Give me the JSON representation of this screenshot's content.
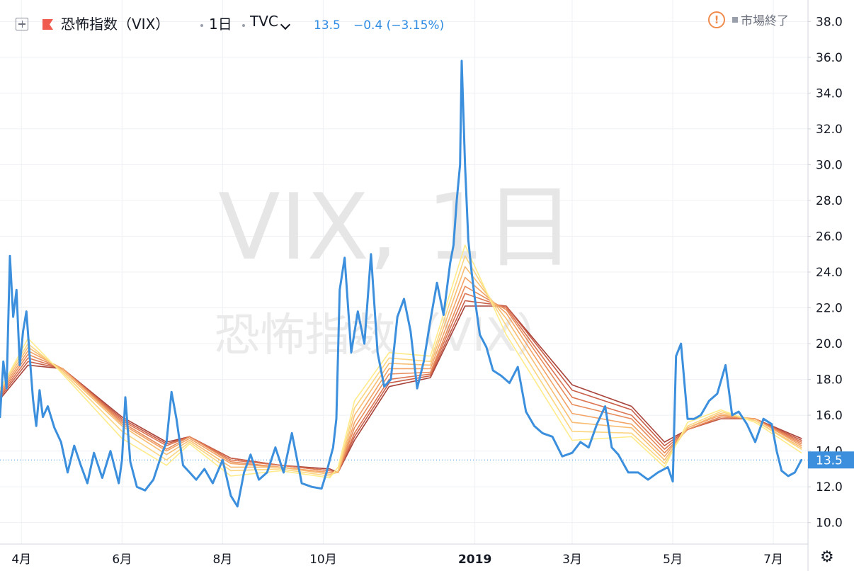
{
  "header": {
    "symbol_name": "恐怖指数（VIX）",
    "interval": "1日",
    "exchange": "TVC",
    "last": "13.5",
    "change": "−0.4 (−3.15%)",
    "market_status": "市場終了"
  },
  "watermark": {
    "line1": "VIX, 1日",
    "line2": "恐怖指数（VIX）"
  },
  "price_label": "13.5",
  "chart_data": {
    "type": "line",
    "title": "",
    "xlabel": "",
    "ylabel": "",
    "ylim": [
      8.8,
      39.2
    ],
    "xlim": [
      "2018-03-19",
      "2019-07-22"
    ],
    "y_ticks": [
      10.0,
      12.0,
      14.0,
      16.0,
      18.0,
      20.0,
      22.0,
      24.0,
      26.0,
      28.0,
      30.0,
      32.0,
      34.0,
      36.0,
      38.0
    ],
    "x_ticks": [
      {
        "label": "4月",
        "date": "2018-04-01"
      },
      {
        "label": "6月",
        "date": "2018-06-01"
      },
      {
        "label": "8月",
        "date": "2018-08-01"
      },
      {
        "label": "10月",
        "date": "2018-10-01"
      },
      {
        "label": "2019",
        "date": "2019-01-01"
      },
      {
        "label": "3月",
        "date": "2019-03-01"
      },
      {
        "label": "5月",
        "date": "2019-05-01"
      },
      {
        "label": "7月",
        "date": "2019-07-01"
      }
    ],
    "last_value": 13.5,
    "series": [
      {
        "name": "VIX",
        "color": "#3b8fdd",
        "dates": [
          "2018-03-19",
          "2018-03-21",
          "2018-03-23",
          "2018-03-25",
          "2018-03-27",
          "2018-03-29",
          "2018-03-31",
          "2018-04-02",
          "2018-04-04",
          "2018-04-06",
          "2018-04-08",
          "2018-04-10",
          "2018-04-12",
          "2018-04-14",
          "2018-04-17",
          "2018-04-21",
          "2018-04-25",
          "2018-04-29",
          "2018-05-03",
          "2018-05-07",
          "2018-05-11",
          "2018-05-15",
          "2018-05-20",
          "2018-05-25",
          "2018-05-30",
          "2018-06-01",
          "2018-06-03",
          "2018-06-06",
          "2018-06-10",
          "2018-06-15",
          "2018-06-20",
          "2018-06-25",
          "2018-06-28",
          "2018-07-01",
          "2018-07-04",
          "2018-07-08",
          "2018-07-12",
          "2018-07-16",
          "2018-07-21",
          "2018-07-26",
          "2018-08-01",
          "2018-08-06",
          "2018-08-10",
          "2018-08-14",
          "2018-08-18",
          "2018-08-23",
          "2018-08-28",
          "2018-09-02",
          "2018-09-07",
          "2018-09-12",
          "2018-09-18",
          "2018-09-24",
          "2018-09-30",
          "2018-10-03",
          "2018-10-05",
          "2018-10-07",
          "2018-10-09",
          "2018-10-11",
          "2018-10-14",
          "2018-10-18",
          "2018-10-22",
          "2018-10-26",
          "2018-10-30",
          "2018-11-03",
          "2018-11-07",
          "2018-11-11",
          "2018-11-15",
          "2018-11-19",
          "2018-11-23",
          "2018-11-27",
          "2018-12-01",
          "2018-12-05",
          "2018-12-09",
          "2018-12-13",
          "2018-12-17",
          "2018-12-19",
          "2018-12-21",
          "2018-12-23",
          "2018-12-24",
          "2018-12-26",
          "2018-12-28",
          "2018-12-30",
          "2019-01-01",
          "2019-01-04",
          "2019-01-08",
          "2019-01-12",
          "2019-01-17",
          "2019-01-22",
          "2019-01-27",
          "2019-02-01",
          "2019-02-06",
          "2019-02-11",
          "2019-02-17",
          "2019-02-23",
          "2019-03-01",
          "2019-03-06",
          "2019-03-11",
          "2019-03-16",
          "2019-03-21",
          "2019-03-25",
          "2019-03-29",
          "2019-04-04",
          "2019-04-10",
          "2019-04-16",
          "2019-04-22",
          "2019-04-28",
          "2019-05-01",
          "2019-05-03",
          "2019-05-06",
          "2019-05-10",
          "2019-05-14",
          "2019-05-18",
          "2019-05-23",
          "2019-05-28",
          "2019-06-02",
          "2019-06-06",
          "2019-06-10",
          "2019-06-15",
          "2019-06-20",
          "2019-06-25",
          "2019-06-30",
          "2019-07-03",
          "2019-07-06",
          "2019-07-10",
          "2019-07-14",
          "2019-07-18"
        ],
        "values": [
          15.9,
          19.0,
          17.5,
          24.9,
          21.5,
          23.0,
          18.8,
          20.7,
          21.8,
          19.3,
          16.9,
          15.4,
          17.4,
          15.9,
          16.5,
          15.3,
          14.5,
          12.8,
          14.3,
          13.2,
          12.2,
          13.9,
          12.5,
          14.0,
          12.2,
          13.5,
          17.0,
          13.4,
          12.0,
          11.8,
          12.4,
          13.8,
          14.5,
          17.3,
          15.8,
          13.2,
          12.8,
          12.4,
          13.0,
          12.2,
          13.5,
          11.5,
          10.9,
          12.8,
          13.8,
          12.4,
          12.8,
          14.2,
          12.8,
          15.0,
          12.2,
          12.0,
          11.9,
          12.8,
          13.5,
          14.2,
          15.8,
          23.0,
          24.8,
          19.5,
          21.8,
          20.0,
          25.0,
          19.5,
          17.6,
          18.0,
          21.5,
          22.5,
          20.7,
          17.5,
          19.0,
          21.3,
          23.4,
          21.6,
          24.5,
          25.5,
          28.0,
          30.0,
          35.8,
          30.0,
          25.8,
          24.0,
          22.5,
          20.5,
          19.8,
          18.5,
          18.2,
          17.8,
          18.7,
          16.2,
          15.4,
          15.0,
          14.8,
          13.7,
          13.9,
          14.5,
          14.2,
          15.5,
          16.5,
          14.2,
          13.8,
          12.8,
          12.8,
          12.4,
          12.8,
          13.1,
          12.3,
          19.3,
          20.0,
          15.8,
          15.8,
          16.0,
          16.8,
          17.2,
          18.8,
          16.0,
          16.2,
          15.5,
          14.5,
          15.8,
          15.5,
          14.0,
          12.9,
          12.6,
          12.8,
          13.5
        ]
      },
      {
        "name": "EMA 1",
        "color": "#ffeb8a",
        "dates": [
          "2018-03-19",
          "2018-04-05",
          "2018-04-26",
          "2018-06-01",
          "2018-06-28",
          "2018-07-12",
          "2018-08-06",
          "2018-09-05",
          "2018-10-05",
          "2018-10-10",
          "2018-10-20",
          "2018-11-10",
          "2018-12-05",
          "2018-12-26",
          "2019-01-20",
          "2019-03-01",
          "2019-04-06",
          "2019-04-26",
          "2019-05-10",
          "2019-05-30",
          "2019-06-20",
          "2019-07-18"
        ],
        "values": [
          17.4,
          20.3,
          18.3,
          14.7,
          13.2,
          14.4,
          12.6,
          12.9,
          12.5,
          13.1,
          16.8,
          19.5,
          19.3,
          25.5,
          20.5,
          14.6,
          14.8,
          13.1,
          15.6,
          16.3,
          15.6,
          13.9
        ]
      },
      {
        "name": "EMA 2",
        "color": "#fcd580",
        "dates": [
          "2018-03-19",
          "2018-04-05",
          "2018-04-26",
          "2018-06-01",
          "2018-06-28",
          "2018-07-12",
          "2018-08-06",
          "2018-09-05",
          "2018-10-05",
          "2018-10-10",
          "2018-10-20",
          "2018-11-10",
          "2018-12-05",
          "2018-12-26",
          "2019-01-20",
          "2019-03-01",
          "2019-04-06",
          "2019-04-26",
          "2019-05-10",
          "2019-05-30",
          "2019-06-20",
          "2019-07-18"
        ],
        "values": [
          17.5,
          20.0,
          18.4,
          15.1,
          13.5,
          14.5,
          12.9,
          13.0,
          12.6,
          12.9,
          16.4,
          19.2,
          19.0,
          24.9,
          21.0,
          15.1,
          15.0,
          13.3,
          15.4,
          16.2,
          15.7,
          14.1
        ]
      },
      {
        "name": "EMA 3",
        "color": "#f8bd72",
        "dates": [
          "2018-03-19",
          "2018-04-05",
          "2018-04-26",
          "2018-06-01",
          "2018-06-28",
          "2018-07-12",
          "2018-08-06",
          "2018-09-05",
          "2018-10-05",
          "2018-10-10",
          "2018-10-20",
          "2018-11-10",
          "2018-12-05",
          "2018-12-26",
          "2019-01-20",
          "2019-03-01",
          "2019-04-06",
          "2019-04-26",
          "2019-05-10",
          "2019-05-30",
          "2019-06-20",
          "2019-07-18"
        ],
        "values": [
          17.4,
          19.8,
          18.5,
          15.4,
          13.8,
          14.6,
          13.1,
          13.1,
          12.7,
          12.8,
          16.0,
          18.9,
          18.8,
          24.3,
          21.4,
          15.6,
          15.3,
          13.5,
          15.3,
          16.1,
          15.7,
          14.2
        ]
      },
      {
        "name": "EMA 4",
        "color": "#f2a365",
        "dates": [
          "2018-03-19",
          "2018-04-05",
          "2018-04-26",
          "2018-06-01",
          "2018-06-28",
          "2018-07-12",
          "2018-08-06",
          "2018-09-05",
          "2018-10-05",
          "2018-10-10",
          "2018-10-20",
          "2018-11-10",
          "2018-12-05",
          "2018-12-26",
          "2019-01-20",
          "2019-03-01",
          "2019-04-06",
          "2019-04-26",
          "2019-05-10",
          "2019-05-30",
          "2019-06-20",
          "2019-07-18"
        ],
        "values": [
          17.3,
          19.6,
          18.6,
          15.5,
          14.0,
          14.7,
          13.3,
          13.1,
          12.8,
          12.8,
          15.6,
          18.6,
          18.6,
          23.7,
          21.7,
          16.1,
          15.5,
          13.7,
          15.3,
          16.0,
          15.8,
          14.3
        ]
      },
      {
        "name": "EMA 5",
        "color": "#e88c5a",
        "dates": [
          "2018-03-19",
          "2018-04-05",
          "2018-04-26",
          "2018-06-01",
          "2018-06-28",
          "2018-07-12",
          "2018-08-06",
          "2018-09-05",
          "2018-10-05",
          "2018-10-10",
          "2018-10-20",
          "2018-11-10",
          "2018-12-05",
          "2018-12-26",
          "2019-01-20",
          "2019-03-01",
          "2019-04-06",
          "2019-04-26",
          "2019-05-10",
          "2019-05-30",
          "2019-06-20",
          "2019-07-18"
        ],
        "values": [
          17.2,
          19.4,
          18.6,
          15.6,
          14.1,
          14.8,
          13.4,
          13.1,
          12.8,
          12.8,
          15.3,
          18.3,
          18.4,
          23.2,
          21.9,
          16.6,
          15.8,
          13.9,
          15.2,
          15.9,
          15.8,
          14.4
        ]
      },
      {
        "name": "EMA 6",
        "color": "#dc7552",
        "dates": [
          "2018-03-19",
          "2018-04-05",
          "2018-04-26",
          "2018-06-01",
          "2018-06-28",
          "2018-07-12",
          "2018-08-06",
          "2018-09-05",
          "2018-10-05",
          "2018-10-10",
          "2018-10-20",
          "2018-11-10",
          "2018-12-05",
          "2018-12-26",
          "2019-01-20",
          "2019-03-01",
          "2019-04-06",
          "2019-04-26",
          "2019-05-10",
          "2019-05-30",
          "2019-06-20",
          "2019-07-18"
        ],
        "values": [
          17.1,
          19.2,
          18.6,
          15.7,
          14.3,
          14.8,
          13.5,
          13.2,
          12.9,
          12.8,
          15.0,
          18.0,
          18.3,
          22.8,
          22.0,
          17.0,
          16.0,
          14.1,
          15.2,
          15.9,
          15.8,
          14.5
        ]
      },
      {
        "name": "EMA 7",
        "color": "#c95e48",
        "dates": [
          "2018-03-19",
          "2018-04-05",
          "2018-04-26",
          "2018-06-01",
          "2018-06-28",
          "2018-07-12",
          "2018-08-06",
          "2018-09-05",
          "2018-10-05",
          "2018-10-10",
          "2018-10-20",
          "2018-11-10",
          "2018-12-05",
          "2018-12-26",
          "2019-01-20",
          "2019-03-01",
          "2019-04-06",
          "2019-04-26",
          "2019-05-10",
          "2019-05-30",
          "2019-06-20",
          "2019-07-18"
        ],
        "values": [
          17.0,
          19.0,
          18.6,
          15.8,
          14.4,
          14.8,
          13.6,
          13.2,
          12.9,
          12.8,
          14.8,
          17.8,
          18.2,
          22.4,
          22.1,
          17.4,
          16.3,
          14.3,
          15.2,
          15.8,
          15.8,
          14.6
        ]
      },
      {
        "name": "EMA 8",
        "color": "#a8433a",
        "dates": [
          "2018-03-19",
          "2018-04-05",
          "2018-04-26",
          "2018-06-01",
          "2018-06-28",
          "2018-07-12",
          "2018-08-06",
          "2018-09-05",
          "2018-10-05",
          "2018-10-10",
          "2018-10-20",
          "2018-11-10",
          "2018-12-05",
          "2018-12-26",
          "2019-01-20",
          "2019-03-01",
          "2019-04-06",
          "2019-04-26",
          "2019-05-10",
          "2019-05-30",
          "2019-06-20",
          "2019-07-18"
        ],
        "values": [
          16.9,
          18.8,
          18.6,
          15.9,
          14.5,
          14.8,
          13.6,
          13.2,
          13.0,
          12.8,
          14.6,
          17.6,
          18.1,
          22.1,
          22.1,
          17.7,
          16.5,
          14.5,
          15.2,
          15.8,
          15.8,
          14.7
        ]
      }
    ]
  },
  "colors": {
    "grid": "#eef0f4",
    "axis_text": "#131722",
    "price_line": "#3b8fdd",
    "warning": "#f08b4b",
    "flag": "#f05b4f"
  },
  "icons": {
    "toggle": "plus-square-icon",
    "flag": "flag-icon",
    "dropdown": "chevron-down-icon",
    "warning": "warning-circle-icon",
    "status": "square-icon",
    "settings": "gear-icon"
  }
}
